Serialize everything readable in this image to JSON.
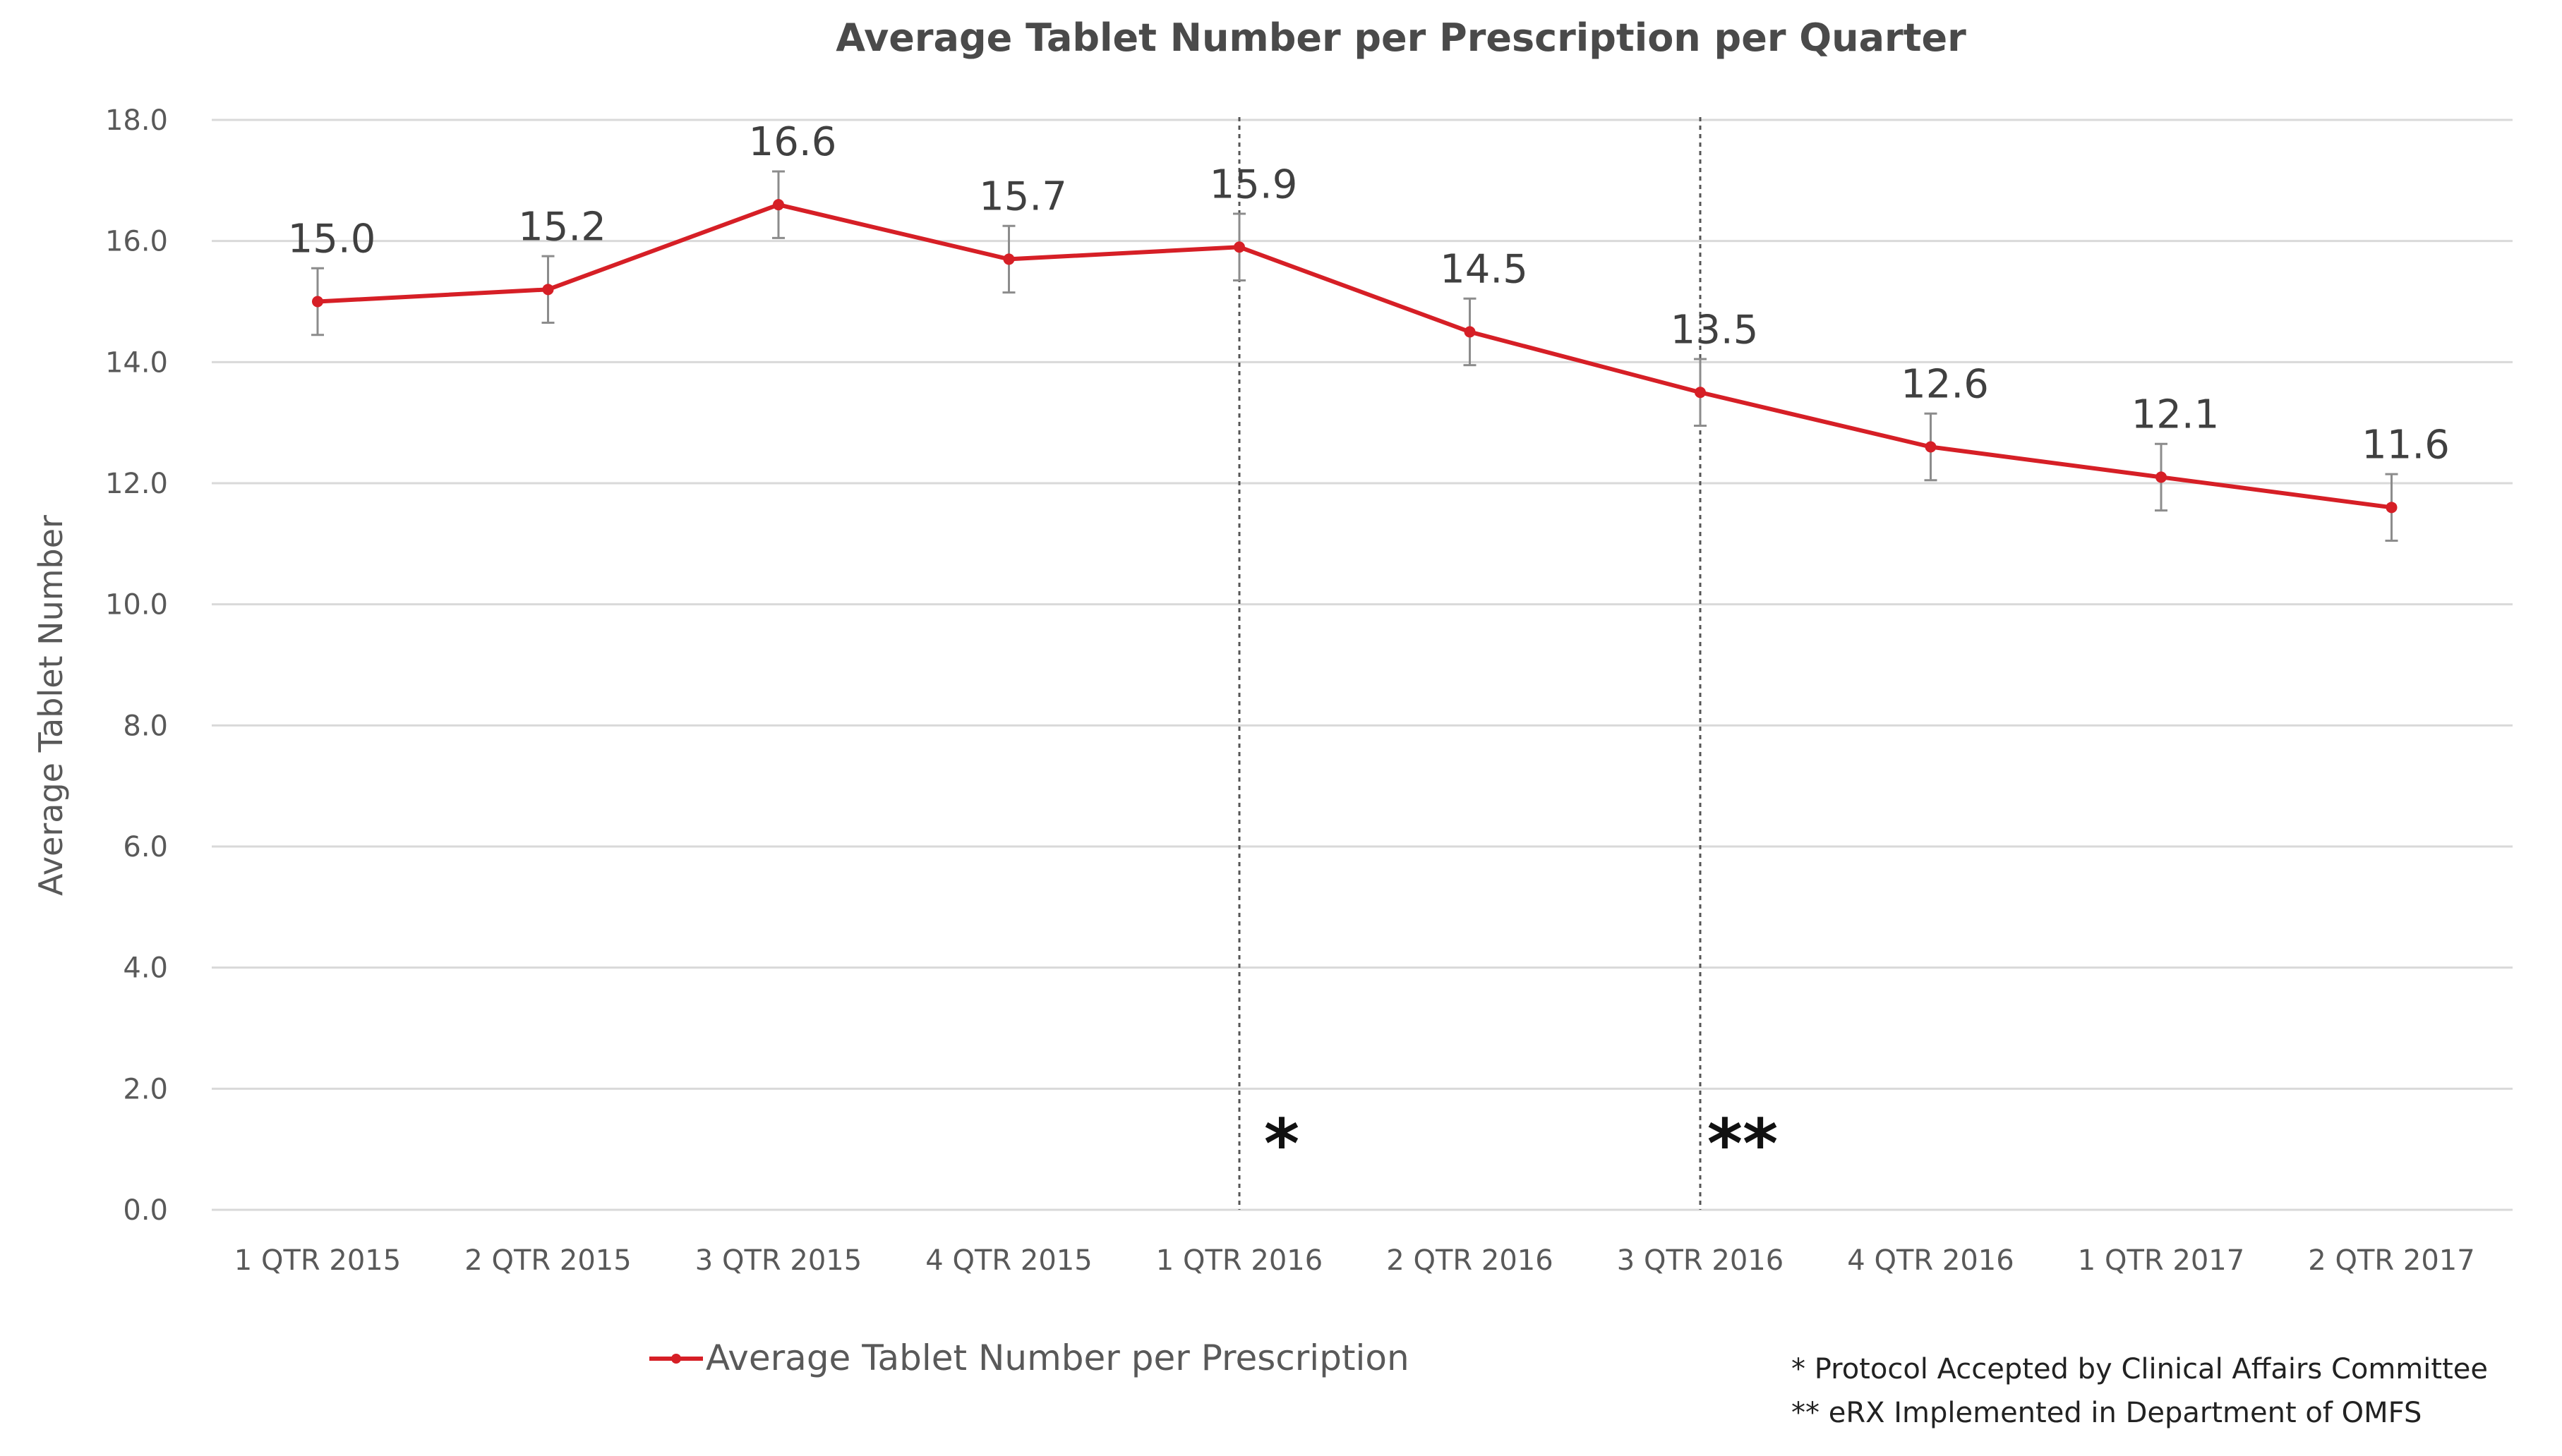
{
  "chart_data": {
    "type": "line",
    "title": "Average Tablet Number per Prescription per Quarter",
    "xlabel": "",
    "ylabel": "Average Tablet Number",
    "ylim": [
      0,
      18
    ],
    "ytick_step": 2,
    "ytick_labels": [
      "0.0",
      "2.0",
      "4.0",
      "6.0",
      "8.0",
      "10.0",
      "12.0",
      "14.0",
      "16.0",
      "18.0"
    ],
    "grid": true,
    "categories": [
      "1 QTR 2015",
      "2 QTR 2015",
      "3 QTR 2015",
      "4 QTR 2015",
      "1 QTR 2016",
      "2 QTR 2016",
      "3 QTR 2016",
      "4 QTR 2016",
      "1 QTR 2017",
      "2 QTR 2017"
    ],
    "series": [
      {
        "name": "Average Tablet Number per Prescription",
        "color": "#d61f26",
        "values": [
          15.0,
          15.2,
          16.6,
          15.7,
          15.9,
          14.5,
          13.5,
          12.6,
          12.1,
          11.6
        ],
        "labels": [
          "15.0",
          "15.2",
          "16.6",
          "15.7",
          "15.9",
          "14.5",
          "13.5",
          "12.6",
          "12.1",
          "11.6"
        ],
        "error": [
          0.55,
          0.55,
          0.55,
          0.55,
          0.55,
          0.55,
          0.55,
          0.55,
          0.55,
          0.55
        ]
      }
    ],
    "vlines": [
      {
        "category_index": 4,
        "marker": "*"
      },
      {
        "category_index": 6,
        "marker": "**"
      }
    ],
    "legend_position": "bottom",
    "notes": [
      "* Protocol Accepted by Clinical Affairs Committee",
      "** eRX Implemented in Department of OMFS"
    ]
  }
}
